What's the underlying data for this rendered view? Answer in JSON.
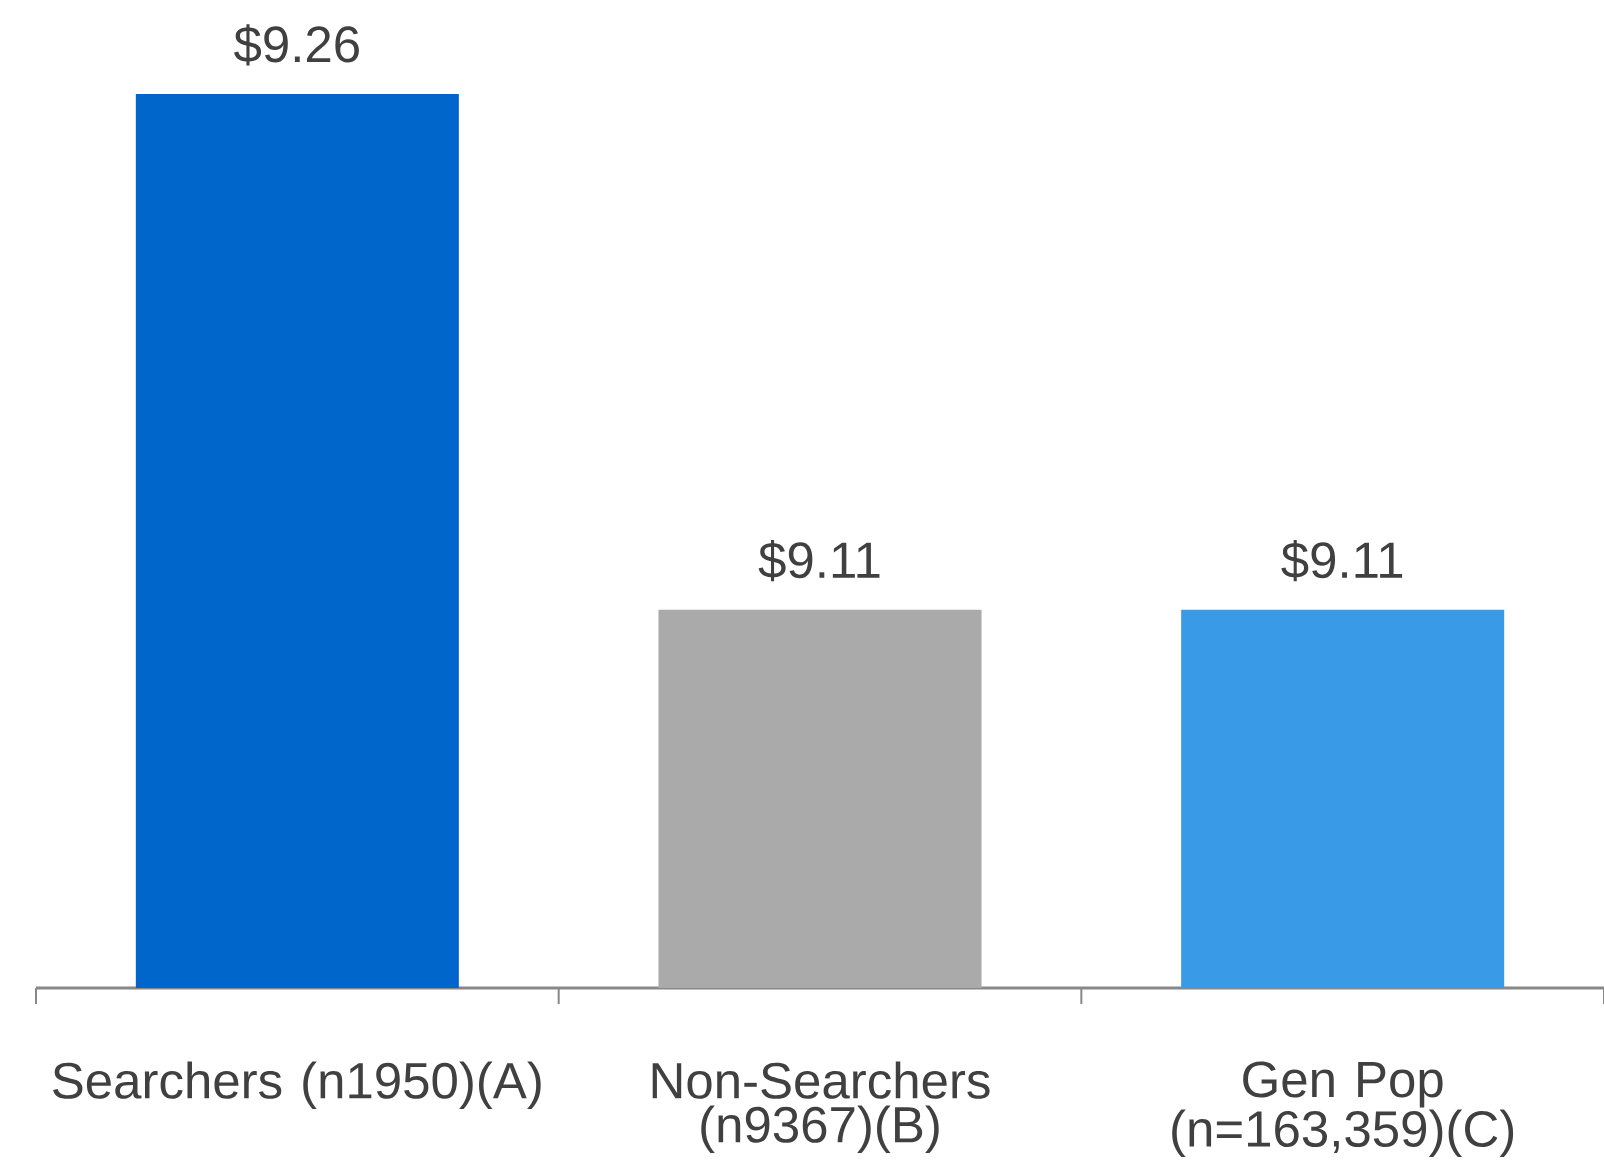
{
  "chart_data": {
    "type": "bar",
    "categories": [
      "Searchers (n1950)(A)",
      "Non-Searchers (n9367)(B)",
      "Gen Pop (n=163,359)(C)"
    ],
    "values": [
      9.26,
      9.11,
      9.11
    ],
    "colors": [
      "#0066cc",
      "#aaaaaa",
      "#399be8"
    ],
    "value_labels": [
      "$9.26",
      "$9.11",
      "$9.11"
    ],
    "ylim": [
      9.0,
      9.26
    ],
    "tick_labels": "x"
  }
}
